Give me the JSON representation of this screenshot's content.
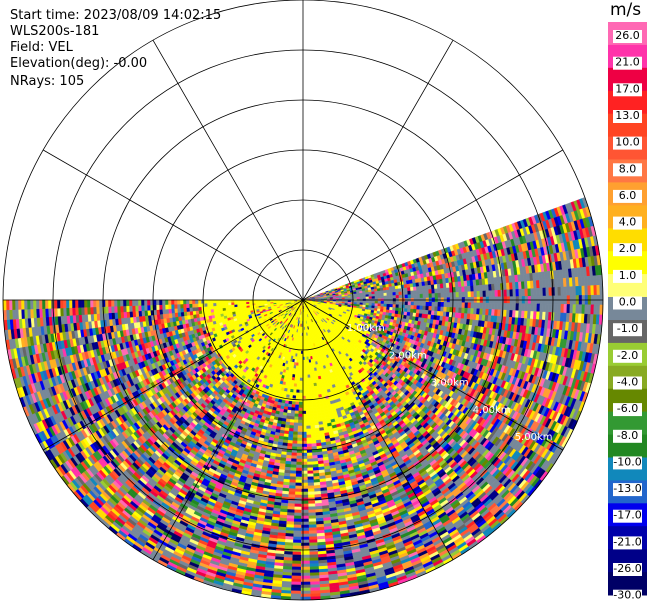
{
  "header": {
    "start_time": "Start time: 2023/08/09 14:02:15",
    "instrument": "WLS200s-181",
    "field": "Field: VEL",
    "elevation": "Elevation(deg): -0.00",
    "nrays": "NRays: 105"
  },
  "chart_data": {
    "type": "heatmap",
    "subtype": "ppi-radar-scan",
    "field": "VEL",
    "units": "m/s",
    "nrays": 105,
    "elevation_deg": -0.0,
    "sector_deg": [
      -20,
      180
    ],
    "range_rings_km": [
      1.0,
      2.0,
      3.0,
      4.0,
      5.0,
      6.0
    ],
    "range_ring_labels": [
      "1.00km",
      "2.00km",
      "3.00km",
      "4.00km",
      "5.00km"
    ],
    "max_range_km": 6.0,
    "spokes_deg": [
      0,
      30,
      60,
      90,
      120,
      150,
      180,
      210,
      240,
      270,
      300,
      330
    ],
    "colorbar": {
      "ticks": [
        "26.0",
        "21.0",
        "17.0",
        "13.0",
        "10.0",
        "8.0",
        "6.0",
        "4.0",
        "2.0",
        "1.0",
        "0.0",
        "-1.0",
        "-2.0",
        "-4.0",
        "-6.0",
        "-8.0",
        "-10.0",
        "-13.0",
        "-17.0",
        "-21.0",
        "-26.0",
        "-30.0"
      ],
      "colors": [
        "#ff69b4",
        "#ff33aa",
        "#ee0044",
        "#ff2222",
        "#ff4422",
        "#ff5533",
        "#ff7744",
        "#ffa030",
        "#ffb020",
        "#ffdd00",
        "#ffff00",
        "#ffff77",
        "#778899",
        "#666666",
        "#99cc33",
        "#88aa22",
        "#668800",
        "#339933",
        "#228822",
        "#1188bb",
        "#2266cc",
        "#0000ee",
        "#0000aa",
        "#000088",
        "#000066"
      ]
    },
    "colors": {
      "near_field": "#ffff00",
      "zero_band": "#778899",
      "grid": "#000000",
      "ring_label": "#ffffff"
    }
  }
}
